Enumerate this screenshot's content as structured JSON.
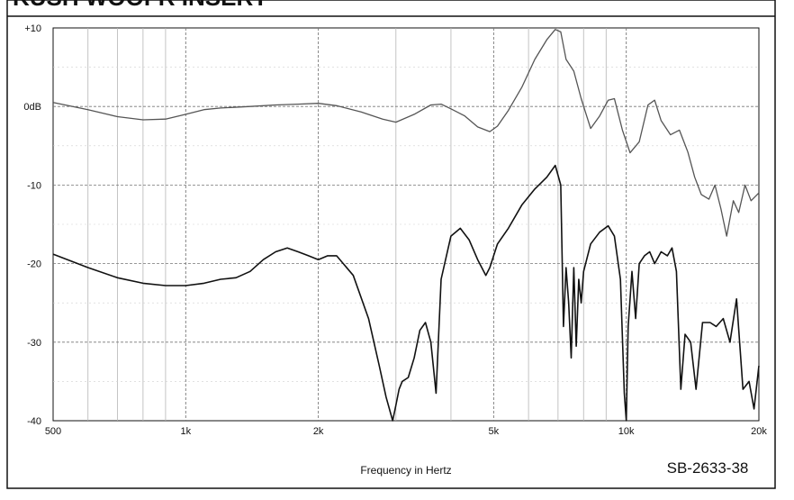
{
  "header": {
    "text": "KUSH WOOFR INSERT"
  },
  "figure_code": "SB-2633-38",
  "chart_data": {
    "type": "line",
    "xlabel": "Frequency in Hertz",
    "ylabel": "",
    "x_scale": "log",
    "xlim": [
      500,
      20000
    ],
    "ylim": [
      -40,
      10
    ],
    "x_ticks": [
      {
        "value": 500,
        "label": "500"
      },
      {
        "value": 1000,
        "label": "1k"
      },
      {
        "value": 2000,
        "label": "2k"
      },
      {
        "value": 5000,
        "label": "5k"
      },
      {
        "value": 10000,
        "label": "10k"
      },
      {
        "value": 20000,
        "label": "20k"
      }
    ],
    "y_ticks": [
      {
        "value": 10,
        "label": "+10"
      },
      {
        "value": 0,
        "label": "0dB"
      },
      {
        "value": -10,
        "label": "-10"
      },
      {
        "value": -20,
        "label": "-20"
      },
      {
        "value": -30,
        "label": "-30"
      },
      {
        "value": -40,
        "label": "-40"
      }
    ],
    "grid": true,
    "series": [
      {
        "color": "#555555",
        "x": [
          500,
          600,
          700,
          800,
          900,
          1000,
          1100,
          1200,
          1400,
          1600,
          1800,
          2000,
          2200,
          2500,
          2800,
          3000,
          3300,
          3600,
          3800,
          4000,
          4300,
          4600,
          4900,
          5100,
          5400,
          5800,
          6200,
          6600,
          6900,
          7100,
          7300,
          7600,
          7900,
          8300,
          8700,
          9100,
          9400,
          9800,
          10200,
          10700,
          11200,
          11600,
          12000,
          12600,
          13200,
          13800,
          14300,
          14800,
          15400,
          15900,
          16400,
          16900,
          17500,
          18000,
          18600,
          19200,
          20000
        ],
        "values": [
          0.5,
          -0.4,
          -1.3,
          -1.7,
          -1.6,
          -1.0,
          -0.4,
          -0.2,
          0.0,
          0.2,
          0.3,
          0.4,
          0.1,
          -0.7,
          -1.6,
          -2.0,
          -1.0,
          0.2,
          0.3,
          -0.3,
          -1.2,
          -2.6,
          -3.2,
          -2.5,
          -0.5,
          2.5,
          6.0,
          8.5,
          9.8,
          9.5,
          6.0,
          4.5,
          1.0,
          -2.8,
          -1.2,
          0.8,
          1.0,
          -3.0,
          -5.9,
          -4.5,
          0.2,
          0.8,
          -1.8,
          -3.6,
          -3.0,
          -5.8,
          -9.0,
          -11.2,
          -11.8,
          -10.0,
          -13.0,
          -16.5,
          -12.0,
          -13.5,
          -10.0,
          -12.0,
          -11.0
        ]
      },
      {
        "color": "#111111",
        "x": [
          500,
          600,
          700,
          800,
          900,
          1000,
          1100,
          1200,
          1300,
          1400,
          1500,
          1600,
          1700,
          1800,
          1900,
          2000,
          2100,
          2200,
          2400,
          2600,
          2750,
          2850,
          2950,
          3000,
          3050,
          3100,
          3200,
          3300,
          3400,
          3500,
          3600,
          3700,
          3800,
          4000,
          4200,
          4400,
          4600,
          4800,
          4900,
          5100,
          5400,
          5800,
          6200,
          6600,
          6900,
          7100,
          7200,
          7300,
          7400,
          7500,
          7600,
          7700,
          7800,
          7900,
          8000,
          8300,
          8700,
          9100,
          9400,
          9700,
          9900,
          10000,
          10100,
          10300,
          10500,
          10700,
          11000,
          11300,
          11600,
          12000,
          12400,
          12700,
          13000,
          13300,
          13600,
          14000,
          14400,
          14900,
          15500,
          16000,
          16600,
          17200,
          17800,
          18400,
          19000,
          19500,
          20000
        ],
        "values": [
          -18.8,
          -20.5,
          -21.8,
          -22.5,
          -22.8,
          -22.8,
          -22.5,
          -22.0,
          -21.8,
          -21.0,
          -19.5,
          -18.5,
          -18.0,
          -18.5,
          -19.0,
          -19.5,
          -19.0,
          -19.0,
          -21.5,
          -27.0,
          -33.0,
          -37.0,
          -40.0,
          -38.0,
          -36.0,
          -35.0,
          -34.5,
          -32.0,
          -28.5,
          -27.5,
          -30.0,
          -36.5,
          -22.0,
          -16.5,
          -15.5,
          -17.0,
          -19.5,
          -21.5,
          -20.5,
          -17.5,
          -15.5,
          -12.5,
          -10.5,
          -9.0,
          -7.5,
          -10.0,
          -28.0,
          -20.5,
          -25.0,
          -32.0,
          -20.5,
          -30.5,
          -22.0,
          -25.0,
          -21.0,
          -17.5,
          -16.0,
          -15.2,
          -16.5,
          -22.0,
          -36.5,
          -40.0,
          -28.0,
          -21.0,
          -27.0,
          -20.0,
          -19.0,
          -18.5,
          -20.0,
          -18.5,
          -19.0,
          -18.0,
          -21.0,
          -36.0,
          -29.0,
          -30.0,
          -36.0,
          -27.5,
          -27.5,
          -28.0,
          -27.0,
          -30.0,
          -24.5,
          -36.0,
          -35.0,
          -38.5,
          -33.0
        ]
      }
    ]
  }
}
